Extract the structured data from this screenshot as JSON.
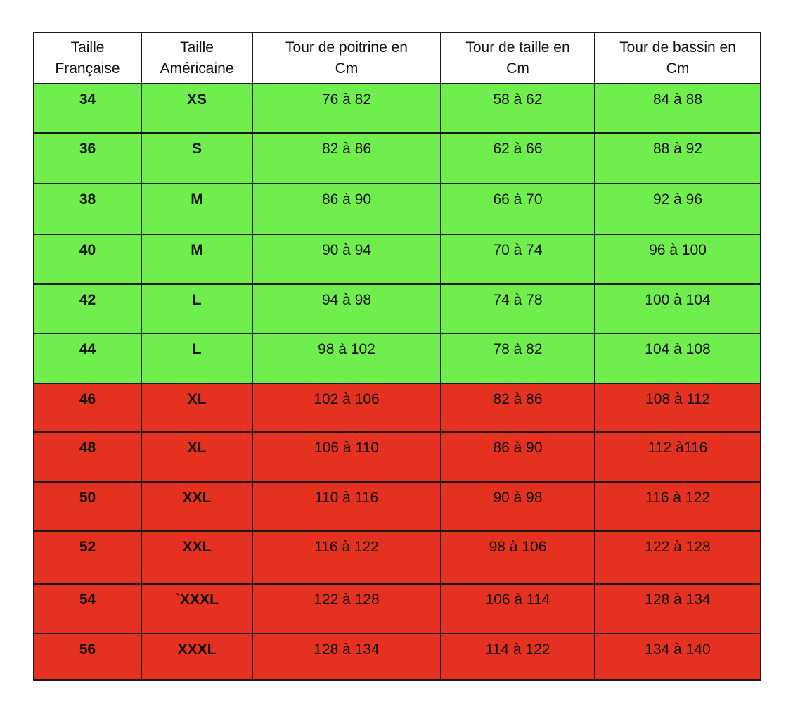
{
  "colors": {
    "green_rows": "#6fee4e",
    "red_rows": "#e5311f",
    "border": "#1a1a1a"
  },
  "table": {
    "headers": [
      [
        "Taille",
        "Française"
      ],
      [
        "Taille",
        "Américaine"
      ],
      [
        "Tour de poitrine en",
        "Cm"
      ],
      [
        "Tour de taille en",
        "Cm"
      ],
      [
        "Tour de bassin en",
        "Cm"
      ]
    ],
    "rows": [
      {
        "color": "green",
        "cells": [
          "34",
          "XS",
          "76 à 82",
          "58 à 62",
          "84 à 88"
        ]
      },
      {
        "color": "green",
        "cells": [
          "36",
          "S",
          "82 à 86",
          "62 à 66",
          "88 à 92"
        ]
      },
      {
        "color": "green",
        "cells": [
          "38",
          "M",
          "86 à 90",
          "66 à 70",
          "92 à 96"
        ]
      },
      {
        "color": "green",
        "cells": [
          "40",
          "M",
          "90 à 94",
          "70 à 74",
          "96 à 100"
        ]
      },
      {
        "color": "green",
        "cells": [
          "42",
          "L",
          "94 à 98",
          "74 à 78",
          "100 à 104"
        ]
      },
      {
        "color": "green",
        "cells": [
          "44",
          "L",
          "98 à 102",
          "78 à 82",
          "104 à 108"
        ]
      },
      {
        "color": "red",
        "cells": [
          "46",
          "XL",
          "102 à 106",
          "82 à 86",
          "108 à 112"
        ]
      },
      {
        "color": "red",
        "cells": [
          "48",
          "XL",
          "106 à 110",
          "86 à 90",
          "112 à116"
        ]
      },
      {
        "color": "red",
        "cells": [
          "50",
          "XXL",
          "110 à 116",
          "90 à 98",
          "116 à 122"
        ]
      },
      {
        "color": "red",
        "cells": [
          "52",
          "XXL",
          "116 à 122",
          "98 à 106",
          "122 à 128"
        ]
      },
      {
        "color": "red",
        "cells": [
          "54",
          "`XXXL",
          "122 à 128",
          "106 à 114",
          "128 à 134"
        ]
      },
      {
        "color": "red",
        "cells": [
          "56",
          "XXXL",
          "128 à 134",
          "114 à 122",
          "134 à 140"
        ]
      }
    ]
  }
}
